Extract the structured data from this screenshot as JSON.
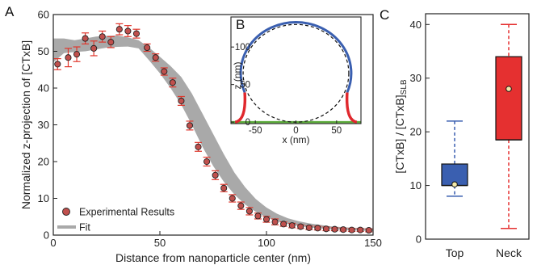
{
  "panels": {
    "a": "A",
    "b": "B",
    "c": "C"
  },
  "colors": {
    "marker": "#c0504d",
    "errorbar": "#e0362b",
    "fit_band": "#a9a9a9",
    "circle": "#3a5fb0",
    "neck": "#e0282d",
    "substrate": "#5aaa3a",
    "box_top": "#3a5fb0",
    "box_neck": "#e53030"
  },
  "chart_data": [
    {
      "id": "A",
      "type": "scatter",
      "xlabel": "Distance from nanoparticle center (nm)",
      "ylabel": "Normalized z-projection of [CTxB]",
      "xlim": [
        0,
        150
      ],
      "ylim": [
        0,
        60
      ],
      "xticks": [
        "0",
        "50",
        "100",
        "150"
      ],
      "yticks": [
        "0",
        "10",
        "20",
        "30",
        "40",
        "50",
        "60"
      ],
      "legend": {
        "position": "bottom-left",
        "entries": [
          "Experimental Results",
          "Fit"
        ]
      },
      "series": [
        {
          "name": "Experimental Results",
          "x": [
            2,
            7,
            11,
            15,
            19,
            23,
            27,
            31,
            35,
            39,
            44,
            48,
            52,
            56,
            60,
            64,
            68,
            72,
            76,
            80,
            84,
            88,
            92,
            96,
            100,
            104,
            108,
            112,
            116,
            120,
            124,
            128,
            132,
            136,
            140,
            144,
            148
          ],
          "y": [
            46.5,
            48.3,
            49.2,
            53.5,
            50.8,
            54.0,
            52.5,
            56.0,
            55.5,
            54.8,
            51.0,
            48.3,
            44.5,
            41.5,
            36.5,
            29.8,
            24.0,
            20.0,
            16.3,
            12.8,
            10.0,
            8.0,
            6.5,
            5.2,
            4.3,
            3.6,
            3.0,
            2.6,
            2.3,
            2.0,
            1.9,
            1.7,
            1.6,
            1.5,
            1.4,
            1.4,
            1.3
          ],
          "err": [
            1.5,
            2.5,
            2.0,
            1.5,
            2.0,
            1.5,
            1.5,
            1.5,
            1.5,
            1.2,
            1.0,
            1.0,
            1.0,
            1.2,
            1.2,
            1.2,
            1.2,
            1.2,
            1.2,
            1.0,
            1.0,
            1.0,
            1.0,
            0.8,
            0.8,
            0.8,
            0.6,
            0.6,
            0.5,
            0.5,
            0.5,
            0.5,
            0.4,
            0.4,
            0.4,
            0.4,
            0.4
          ]
        },
        {
          "name": "Fit",
          "type": "area",
          "x": [
            0,
            5,
            10,
            15,
            20,
            25,
            30,
            35,
            40,
            45,
            50,
            55,
            60,
            65,
            70,
            75,
            80,
            85,
            90,
            95,
            100,
            105,
            110,
            115,
            120,
            125,
            130,
            135,
            140,
            145,
            150
          ],
          "upper": [
            53.5,
            53.5,
            53.0,
            53.5,
            54.0,
            54.2,
            54.3,
            53.8,
            53.0,
            51.0,
            48.5,
            46.0,
            43.0,
            38.5,
            33.0,
            27.5,
            22.0,
            17.0,
            13.0,
            9.8,
            7.5,
            5.8,
            4.6,
            3.8,
            3.2,
            2.8,
            2.4,
            2.2,
            2.0,
            1.9,
            1.8
          ],
          "lower": [
            47.0,
            49.5,
            49.8,
            50.0,
            50.5,
            51.0,
            51.2,
            51.3,
            50.8,
            47.5,
            44.0,
            40.0,
            35.5,
            30.0,
            24.0,
            18.8,
            14.5,
            11.0,
            8.3,
            6.3,
            4.8,
            3.8,
            3.0,
            2.5,
            2.1,
            1.8,
            1.6,
            1.4,
            1.3,
            1.2,
            1.1
          ]
        }
      ]
    },
    {
      "id": "B",
      "type": "line",
      "xlabel": "x (nm)",
      "ylabel": "z (nm)",
      "xlim": [
        -80,
        80
      ],
      "ylim": [
        -2,
        140
      ],
      "xticks": [
        "-50",
        "0",
        "50"
      ],
      "yticks": [
        "0",
        "50",
        "100"
      ],
      "series": [
        {
          "name": "membrane",
          "shape": "circle",
          "center": [
            0,
            65
          ],
          "radius": 68,
          "neck_x": [
            -63,
            63
          ]
        },
        {
          "name": "nanoparticle",
          "shape": "circle",
          "style": "dashed",
          "center": [
            0,
            65
          ],
          "radius": 65
        },
        {
          "name": "supported lipid bilayer",
          "z": 0
        }
      ]
    },
    {
      "id": "C",
      "type": "box",
      "ylabel": "[CTxB] / [CTxB]",
      "ylabel_subscript": "SLB",
      "ylim": [
        0,
        42
      ],
      "yticks": [
        "0",
        "10",
        "20",
        "30",
        "40"
      ],
      "categories": [
        "Top",
        "Neck"
      ],
      "boxes": [
        {
          "name": "Top",
          "whisker_low": 8.0,
          "q1": 10.0,
          "median": 10.0,
          "q3": 14.0,
          "whisker_high": 22.0,
          "mean": 10.2
        },
        {
          "name": "Neck",
          "whisker_low": 2.0,
          "q1": 18.5,
          "median": 18.5,
          "q3": 34.0,
          "whisker_high": 40.0,
          "mean": 28.0
        }
      ]
    }
  ]
}
